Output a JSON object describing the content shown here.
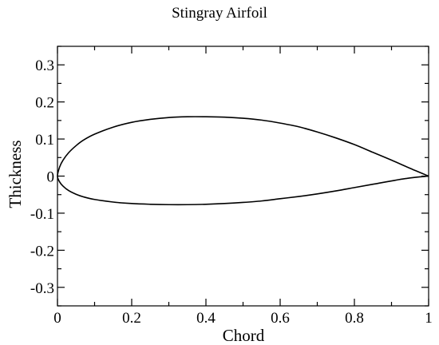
{
  "chart_data": {
    "type": "line",
    "title": "Stingray Airfoil",
    "xlabel": "Chord",
    "ylabel": "Thickness",
    "xlim": [
      0,
      1
    ],
    "ylim": [
      -0.35,
      0.35
    ],
    "grid": false,
    "x_ticks": [
      0,
      0.2,
      0.4,
      0.6,
      0.8,
      1
    ],
    "x_tick_labels": [
      "0",
      "0.2",
      "0.4",
      "0.6",
      "0.8",
      "1"
    ],
    "y_ticks": [
      0.3,
      0.2,
      0.1,
      0,
      -0.1,
      -0.2,
      -0.3
    ],
    "y_tick_labels": [
      "0.3",
      "0.2",
      "0.1",
      "0",
      "-0.1",
      "-0.2",
      "-0.3"
    ],
    "series": [
      {
        "color": "#000000",
        "x": [
          1.0,
          0.95,
          0.9,
          0.85,
          0.8,
          0.75,
          0.7,
          0.65,
          0.6,
          0.55,
          0.5,
          0.45,
          0.4,
          0.35,
          0.3,
          0.25,
          0.2,
          0.15,
          0.1,
          0.07,
          0.05,
          0.03,
          0.015,
          0.006,
          0.0,
          0.006,
          0.015,
          0.03,
          0.05,
          0.07,
          0.1,
          0.15,
          0.2,
          0.25,
          0.3,
          0.35,
          0.4,
          0.45,
          0.5,
          0.55,
          0.6,
          0.65,
          0.7,
          0.75,
          0.8,
          0.85,
          0.9,
          0.95,
          1.0
        ],
        "y": [
          0.0,
          0.021,
          0.043,
          0.064,
          0.085,
          0.103,
          0.119,
          0.133,
          0.143,
          0.151,
          0.156,
          0.159,
          0.16,
          0.16,
          0.158,
          0.153,
          0.145,
          0.132,
          0.113,
          0.097,
          0.082,
          0.063,
          0.043,
          0.025,
          0.0,
          -0.016,
          -0.027,
          -0.039,
          -0.049,
          -0.056,
          -0.063,
          -0.07,
          -0.074,
          -0.076,
          -0.077,
          -0.077,
          -0.076,
          -0.074,
          -0.071,
          -0.067,
          -0.061,
          -0.055,
          -0.048,
          -0.04,
          -0.031,
          -0.022,
          -0.013,
          -0.005,
          0.0
        ]
      }
    ]
  }
}
